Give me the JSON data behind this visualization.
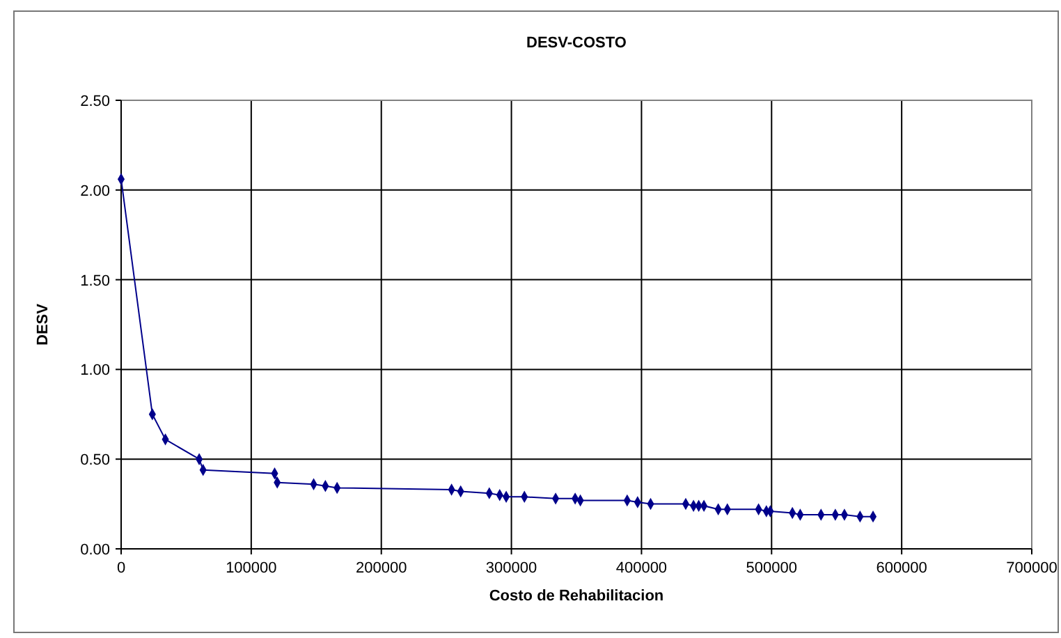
{
  "chart_data": {
    "type": "line",
    "title": "DESV-COSTO",
    "xlabel": "Costo de Rehabilitacion",
    "ylabel": "DESV",
    "x": [
      0,
      24000,
      34000,
      60000,
      63000,
      118000,
      120000,
      148000,
      157000,
      166000,
      254000,
      261000,
      283000,
      291000,
      296000,
      310000,
      334000,
      349000,
      353000,
      389000,
      397000,
      407000,
      434000,
      440000,
      444000,
      448000,
      459000,
      466000,
      490000,
      496000,
      499000,
      516000,
      522000,
      538000,
      549000,
      556000,
      568000,
      578000
    ],
    "series": [
      {
        "color": "#00008b",
        "values": [
          2.06,
          0.75,
          0.61,
          0.5,
          0.44,
          0.42,
          0.37,
          0.36,
          0.35,
          0.34,
          0.33,
          0.32,
          0.31,
          0.3,
          0.29,
          0.29,
          0.28,
          0.28,
          0.27,
          0.27,
          0.26,
          0.25,
          0.25,
          0.24,
          0.24,
          0.24,
          0.22,
          0.22,
          0.22,
          0.21,
          0.21,
          0.2,
          0.19,
          0.19,
          0.19,
          0.19,
          0.18,
          0.18
        ]
      }
    ],
    "xlim": [
      0,
      700000
    ],
    "xticks": [
      0,
      100000,
      200000,
      300000,
      400000,
      500000,
      600000,
      700000
    ],
    "ylim": [
      0,
      2.5
    ],
    "yticks": [
      {
        "value": 0,
        "label": "0.00"
      },
      {
        "value": 0.5,
        "label": "0.50"
      },
      {
        "value": 1,
        "label": "1.00"
      },
      {
        "value": 1.5,
        "label": "1.50"
      },
      {
        "value": 2,
        "label": "2.00"
      },
      {
        "value": 2.5,
        "label": "2.50"
      }
    ],
    "grid": true,
    "marker": "diamond",
    "line_style": "solid"
  }
}
